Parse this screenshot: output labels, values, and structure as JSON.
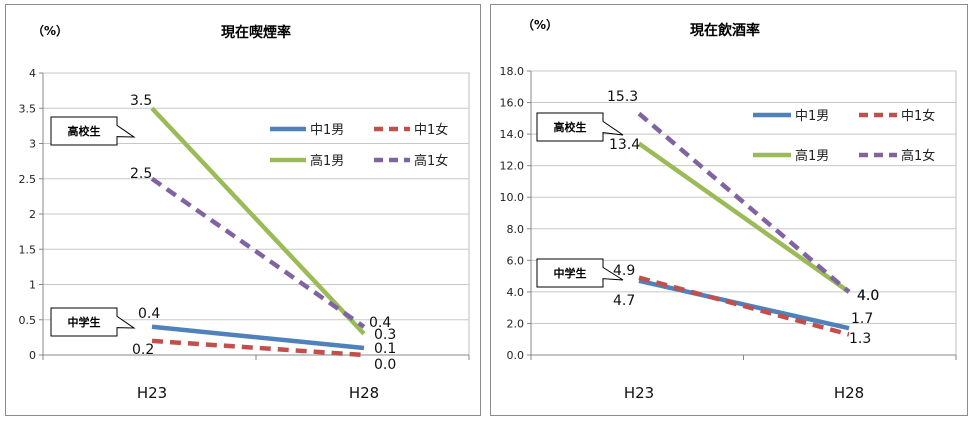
{
  "chart_data": [
    {
      "type": "line",
      "title": "現在喫煙率",
      "unit_label": "（%）",
      "categories": [
        "H23",
        "H28"
      ],
      "ylim": [
        0,
        4
      ],
      "yticks": [
        "0",
        "0.5",
        "1",
        "1.5",
        "2",
        "2.5",
        "3",
        "3.5",
        "4"
      ],
      "ytick_values": [
        0,
        0.5,
        1,
        1.5,
        2,
        2.5,
        3,
        3.5,
        4
      ],
      "grid": true,
      "legend": "top-right",
      "series": [
        {
          "name": "中1男",
          "values": [
            0.4,
            0.1
          ],
          "labels": [
            "0.4",
            "0.1"
          ],
          "color": "#4f81bd",
          "dash": false
        },
        {
          "name": "中1女",
          "values": [
            0.2,
            0.0
          ],
          "labels": [
            "0.2",
            "0.0"
          ],
          "color": "#c0504d",
          "dash": true
        },
        {
          "name": "高1男",
          "values": [
            3.5,
            0.3
          ],
          "labels": [
            "3.5",
            "0.3"
          ],
          "color": "#9bbb59",
          "dash": false
        },
        {
          "name": "高1女",
          "values": [
            2.5,
            0.4
          ],
          "labels": [
            "2.5",
            "0.4"
          ],
          "color": "#8064a2",
          "dash": true
        }
      ],
      "callouts": [
        "高校生",
        "中学生"
      ]
    },
    {
      "type": "line",
      "title": "現在飲酒率",
      "unit_label": "（%）",
      "categories": [
        "H23",
        "H28"
      ],
      "ylim": [
        0,
        18
      ],
      "yticks": [
        "0.0",
        "2.0",
        "4.0",
        "6.0",
        "8.0",
        "10.0",
        "12.0",
        "14.0",
        "16.0",
        "18.0"
      ],
      "ytick_values": [
        0,
        2,
        4,
        6,
        8,
        10,
        12,
        14,
        16,
        18
      ],
      "grid": true,
      "legend": "top-right",
      "series": [
        {
          "name": "中1男",
          "values": [
            4.7,
            1.7
          ],
          "labels": [
            "4.7",
            "1.7"
          ],
          "color": "#4f81bd",
          "dash": false
        },
        {
          "name": "中1女",
          "values": [
            4.9,
            1.3
          ],
          "labels": [
            "4.9",
            "1.3"
          ],
          "color": "#c0504d",
          "dash": true
        },
        {
          "name": "高1男",
          "values": [
            13.4,
            4.0
          ],
          "labels": [
            "13.4",
            "4.0"
          ],
          "color": "#9bbb59",
          "dash": false
        },
        {
          "name": "高1女",
          "values": [
            15.3,
            4.0
          ],
          "labels": [
            "15.3",
            "4.0"
          ],
          "color": "#8064a2",
          "dash": true
        }
      ],
      "callouts": [
        "高校生",
        "中学生"
      ]
    }
  ]
}
